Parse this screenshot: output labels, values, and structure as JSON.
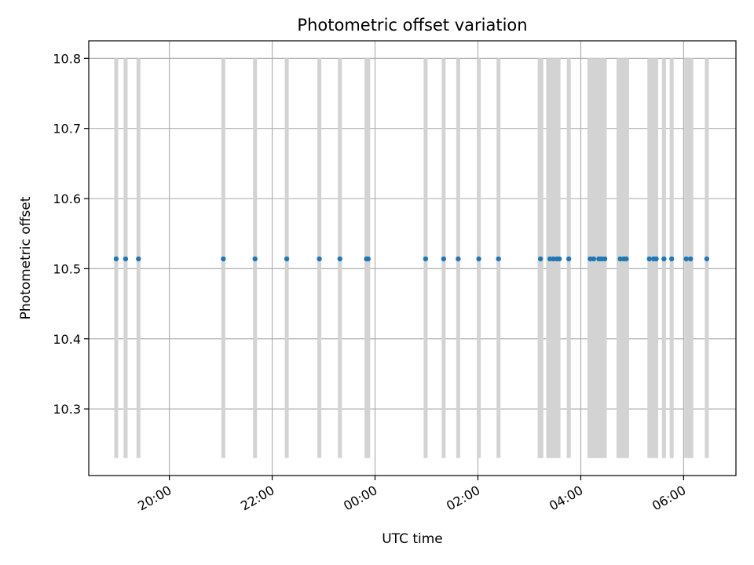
{
  "chart_data": {
    "type": "scatter",
    "title": "Photometric offset variation",
    "xlabel": "UTC time",
    "ylabel": "Photometric offset",
    "x_axis": "time",
    "xlim": [
      "18:26",
      "07:01"
    ],
    "ylim": [
      10.205,
      10.825
    ],
    "xticks": [
      "20:00",
      "22:00",
      "00:00",
      "02:00",
      "04:00",
      "06:00"
    ],
    "yticks": [
      "10.3",
      "10.4",
      "10.5",
      "10.6",
      "10.7",
      "10.8"
    ],
    "grid": true,
    "points": {
      "x": [
        "18:58",
        "19:09",
        "19:24",
        "21:03",
        "21:40",
        "22:17",
        "22:55",
        "23:19",
        "23:50",
        "23:52",
        "00:59",
        "01:20",
        "01:37",
        "02:01",
        "02:24",
        "03:13",
        "03:24",
        "03:28",
        "03:32",
        "03:35",
        "03:46",
        "04:11",
        "04:15",
        "04:21",
        "04:24",
        "04:28",
        "04:46",
        "04:50",
        "04:53",
        "05:20",
        "05:25",
        "05:28",
        "05:37",
        "05:46",
        "06:03",
        "06:08",
        "06:27"
      ],
      "y": [
        10.514,
        10.514,
        10.514,
        10.514,
        10.514,
        10.514,
        10.514,
        10.514,
        10.514,
        10.514,
        10.514,
        10.514,
        10.514,
        10.514,
        10.514,
        10.514,
        10.514,
        10.514,
        10.514,
        10.514,
        10.514,
        10.514,
        10.514,
        10.514,
        10.514,
        10.514,
        10.514,
        10.514,
        10.514,
        10.514,
        10.514,
        10.514,
        10.514,
        10.514,
        10.514,
        10.514,
        10.514
      ],
      "color": "#1f77b4"
    },
    "bands": {
      "y_range": [
        10.23,
        10.8
      ],
      "color": "#d3d3d3",
      "x": [
        "18:58",
        "19:09",
        "19:24",
        "21:03",
        "21:40",
        "22:17",
        "22:55",
        "23:19",
        "23:50",
        "23:52",
        "00:59",
        "01:20",
        "01:37",
        "02:01",
        "02:24",
        "03:12",
        "03:14",
        "03:22",
        "03:24",
        "03:26",
        "03:28",
        "03:30",
        "03:32",
        "03:34",
        "03:46",
        "04:10",
        "04:12",
        "04:14",
        "04:16",
        "04:20",
        "04:22",
        "04:24",
        "04:26",
        "04:28",
        "04:44",
        "04:46",
        "04:48",
        "04:50",
        "04:52",
        "04:54",
        "05:20",
        "05:22",
        "05:26",
        "05:28",
        "05:37",
        "05:46",
        "06:03",
        "06:07",
        "06:09",
        "06:27"
      ]
    }
  }
}
